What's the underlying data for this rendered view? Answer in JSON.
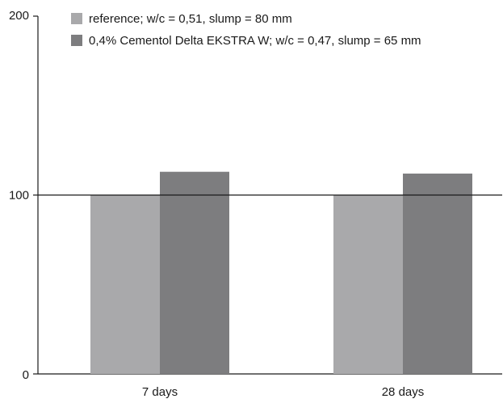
{
  "chart_data": {
    "type": "bar",
    "title": "",
    "xlabel": "",
    "ylabel": "",
    "ylim": [
      0,
      200
    ],
    "yticks": [
      "0",
      "100",
      "200"
    ],
    "categories": [
      "7 days",
      "28 days"
    ],
    "series": [
      {
        "name": "reference; w/c = 0,51, slump = 80 mm",
        "values": [
          100,
          100
        ],
        "color": "#a9a9ab"
      },
      {
        "name": "0,4% Cementol Delta EKSTRA W; w/c = 0,47, slump = 65 mm",
        "values": [
          113,
          112
        ],
        "color": "#7d7d7f"
      }
    ],
    "reference_line": 100,
    "grid": false,
    "legend_position": "top-left"
  }
}
